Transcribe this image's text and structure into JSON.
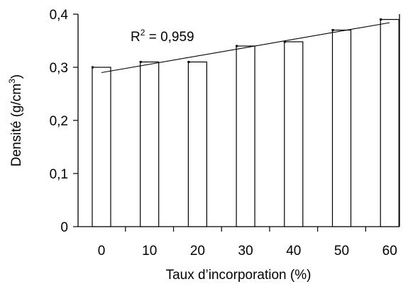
{
  "chart_data": {
    "type": "bar",
    "categories": [
      "0",
      "10",
      "20",
      "30",
      "40",
      "50",
      "60"
    ],
    "values": [
      0.3,
      0.31,
      0.31,
      0.34,
      0.348,
      0.37,
      0.39
    ],
    "ylim": [
      0,
      0.4
    ],
    "yticks": [
      0,
      0.1,
      0.2,
      0.3,
      0.4
    ],
    "ytick_labels": [
      "0",
      "0,1",
      "0,2",
      "0,3",
      "0,4"
    ],
    "xlabel": "Taux d’incorporation (%)",
    "ylabel_main": "Densité (g/cm",
    "ylabel_sup": "3",
    "ylabel_close": ")",
    "trendline": {
      "type": "linear",
      "y_start": 0.29,
      "y_end": 0.384
    },
    "annotation": {
      "r_label": "R",
      "r_sup": "2",
      "r_value": " = 0,959"
    },
    "grid": false,
    "legend": "none"
  }
}
